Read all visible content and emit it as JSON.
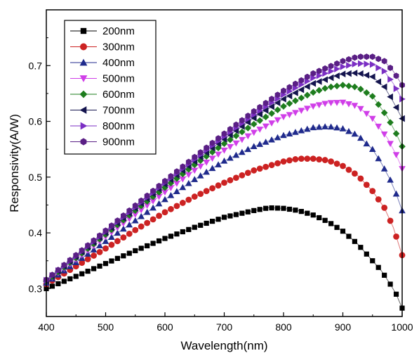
{
  "chart_data": {
    "type": "scatter",
    "xlabel": "Wavelength(nm)",
    "ylabel": "Responsivity(A/W)",
    "xlim": [
      400,
      1000
    ],
    "ylim": [
      0.25,
      0.8
    ],
    "xticks": [
      "400",
      "500",
      "600",
      "700",
      "800",
      "900",
      "1000"
    ],
    "yticks": [
      "0.3",
      "0.4",
      "0.5",
      "0.6",
      "0.7"
    ],
    "grid": false,
    "legend_position": "top-left",
    "series": [
      {
        "name": "200nm",
        "color": "#000000",
        "marker": "square",
        "x": [
          400,
          450,
          500,
          550,
          600,
          650,
          700,
          750,
          775,
          800,
          825,
          850,
          875,
          900,
          925,
          950,
          965,
          980,
          990,
          1000
        ],
        "y": [
          0.3,
          0.322,
          0.345,
          0.368,
          0.39,
          0.41,
          0.428,
          0.44,
          0.445,
          0.444,
          0.44,
          0.432,
          0.42,
          0.403,
          0.38,
          0.35,
          0.332,
          0.308,
          0.29,
          0.265
        ]
      },
      {
        "name": "300nm",
        "color": "#cc2222",
        "marker": "circle",
        "x": [
          400,
          450,
          500,
          550,
          600,
          650,
          700,
          750,
          800,
          825,
          850,
          875,
          900,
          925,
          950,
          970,
          985,
          1000
        ],
        "y": [
          0.308,
          0.34,
          0.372,
          0.405,
          0.437,
          0.465,
          0.49,
          0.512,
          0.528,
          0.533,
          0.533,
          0.53,
          0.52,
          0.503,
          0.475,
          0.445,
          0.41,
          0.36
        ]
      },
      {
        "name": "400nm",
        "color": "#1f2a8c",
        "marker": "triangle-up",
        "x": [
          400,
          450,
          500,
          550,
          600,
          650,
          700,
          750,
          800,
          850,
          875,
          900,
          925,
          950,
          965,
          980,
          990,
          1000
        ],
        "y": [
          0.31,
          0.347,
          0.385,
          0.422,
          0.46,
          0.496,
          0.529,
          0.555,
          0.575,
          0.589,
          0.591,
          0.587,
          0.575,
          0.55,
          0.525,
          0.495,
          0.47,
          0.44
        ]
      },
      {
        "name": "500nm",
        "color": "#d03ee8",
        "marker": "triangle-down",
        "x": [
          400,
          450,
          500,
          550,
          600,
          650,
          700,
          750,
          800,
          850,
          875,
          900,
          925,
          950,
          975,
          990,
          1000
        ],
        "y": [
          0.312,
          0.352,
          0.393,
          0.433,
          0.473,
          0.512,
          0.548,
          0.58,
          0.608,
          0.627,
          0.633,
          0.634,
          0.627,
          0.605,
          0.57,
          0.54,
          0.515
        ]
      },
      {
        "name": "600nm",
        "color": "#1e7d1e",
        "marker": "diamond",
        "x": [
          400,
          450,
          500,
          550,
          600,
          650,
          700,
          750,
          800,
          850,
          875,
          900,
          925,
          950,
          975,
          990,
          1000
        ],
        "y": [
          0.313,
          0.355,
          0.397,
          0.44,
          0.481,
          0.522,
          0.56,
          0.595,
          0.627,
          0.652,
          0.661,
          0.665,
          0.661,
          0.645,
          0.608,
          0.578,
          0.555
        ]
      },
      {
        "name": "700nm",
        "color": "#14144e",
        "marker": "triangle-left",
        "x": [
          400,
          450,
          500,
          550,
          600,
          650,
          700,
          750,
          800,
          850,
          900,
          925,
          950,
          970,
          985,
          1000
        ],
        "y": [
          0.314,
          0.357,
          0.4,
          0.444,
          0.487,
          0.528,
          0.568,
          0.606,
          0.64,
          0.668,
          0.685,
          0.687,
          0.68,
          0.662,
          0.635,
          0.605
        ]
      },
      {
        "name": "800nm",
        "color": "#7b2fc4",
        "marker": "triangle-right",
        "x": [
          400,
          450,
          500,
          550,
          600,
          650,
          700,
          750,
          800,
          850,
          900,
          925,
          950,
          970,
          985,
          1000
        ],
        "y": [
          0.315,
          0.358,
          0.402,
          0.446,
          0.49,
          0.532,
          0.573,
          0.612,
          0.648,
          0.678,
          0.698,
          0.704,
          0.702,
          0.69,
          0.668,
          0.64
        ]
      },
      {
        "name": "900nm",
        "color": "#5a1f85",
        "marker": "hexagon",
        "x": [
          400,
          450,
          500,
          550,
          600,
          650,
          700,
          750,
          800,
          850,
          900,
          925,
          950,
          970,
          985,
          1000
        ],
        "y": [
          0.316,
          0.36,
          0.404,
          0.449,
          0.493,
          0.536,
          0.578,
          0.618,
          0.655,
          0.686,
          0.708,
          0.716,
          0.716,
          0.708,
          0.69,
          0.665
        ]
      }
    ]
  }
}
